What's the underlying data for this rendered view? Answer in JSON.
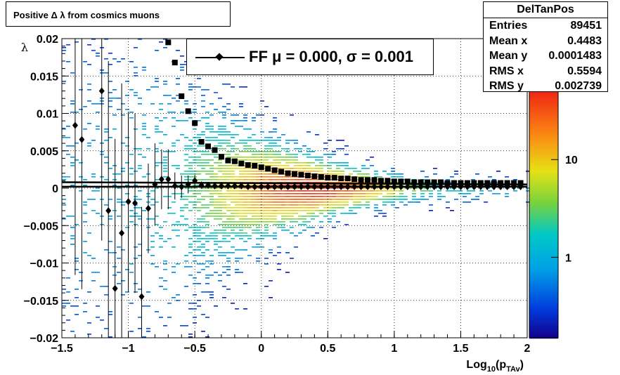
{
  "title": "Positive Δ λ from cosmics muons",
  "stats": {
    "name": "DelTanPos",
    "rows": [
      {
        "label": "Entries",
        "value": "89451"
      },
      {
        "label": "Mean x",
        "value": "0.4483"
      },
      {
        "label": "Mean y",
        "value": "0.0001483"
      },
      {
        "label": "RMS x",
        "value": "0.5594"
      },
      {
        "label": "RMS y",
        "value": "0.002739"
      }
    ]
  },
  "legend": {
    "label": "FF μ =  0.000, σ =   0.001"
  },
  "chart_data": {
    "type": "heatmap",
    "title": "Positive Δ λ from cosmics muons",
    "xlabel": "Log10(pTAv)",
    "ylabel": "λ",
    "xlim": [
      -1.5,
      2
    ],
    "ylim": [
      -0.02,
      0.02
    ],
    "x_ticks": [
      -1.5,
      -1,
      -0.5,
      0,
      0.5,
      1,
      1.5,
      2
    ],
    "x_tick_labels": [
      "−1.5",
      "−1",
      "−0.5",
      "0",
      "0.5",
      "1",
      "1.5",
      "2"
    ],
    "y_ticks": [
      -0.02,
      -0.015,
      -0.01,
      -0.005,
      0,
      0.005,
      0.01,
      0.015,
      0.02
    ],
    "y_tick_labels": [
      "−0.02",
      "−0.015",
      "−0.01",
      "−0.005",
      "0",
      "0.005",
      "0.01",
      "0.015",
      "0.02"
    ],
    "grid": true,
    "colorbar": {
      "scale": "log",
      "tick_values": [
        1,
        10
      ],
      "tick_labels": [
        "1",
        "10"
      ]
    },
    "fit_mean": {
      "name": "FF",
      "x": [
        -1.4,
        -1.35,
        -1.2,
        -1.15,
        -1.1,
        -1.05,
        -1.0,
        -0.95,
        -0.9,
        -0.85,
        -0.8,
        -0.75,
        -0.7,
        -0.65,
        -0.6,
        -0.55,
        -0.5,
        -0.45,
        -0.4,
        -0.35,
        -0.3,
        -0.25,
        -0.2,
        -0.15,
        -0.1,
        -0.05,
        0.0,
        0.05,
        0.1,
        0.15,
        0.2,
        0.25,
        0.3,
        0.35,
        0.4,
        0.45,
        0.5,
        0.55,
        0.6,
        0.65,
        0.7,
        0.75,
        0.8,
        0.85,
        0.9,
        0.95,
        1.0,
        1.05,
        1.1,
        1.15,
        1.2,
        1.25,
        1.3,
        1.35,
        1.4,
        1.45,
        1.5,
        1.55,
        1.6,
        1.65,
        1.7,
        1.75,
        1.8,
        1.85,
        1.9,
        1.95
      ],
      "y": [
        0.0084,
        0.0065,
        0.013,
        -0.003,
        -0.0134,
        -0.006,
        -0.0018,
        -0.002,
        -0.0145,
        -0.0027,
        0.0005,
        0.0012,
        0.0012,
        0.0003,
        0.0002,
        0.0005,
        0.001,
        0.0004,
        0.0004,
        0.0003,
        0.0003,
        0.0003,
        0.0003,
        0.0003,
        0.0002,
        0.0002,
        0.0002,
        0.0002,
        0.0002,
        0.0002,
        0.0002,
        0.0002,
        0.0002,
        0.0002,
        0.0002,
        0.0002,
        0.0002,
        0.0002,
        0.0002,
        0.0002,
        0.0002,
        0.0002,
        0.0002,
        0.0002,
        0.0002,
        0.0002,
        0.0002,
        0.0002,
        0.0002,
        0.0002,
        0.0002,
        0.0002,
        0.0002,
        0.0002,
        0.0002,
        0.0002,
        0.0002,
        0.0002,
        0.0002,
        0.0002,
        0.0002,
        0.0002,
        0.0002,
        0.0002,
        0.0002,
        0.0002
      ],
      "err": [
        0.02,
        0.02,
        0.02,
        0.02,
        0.02,
        0.02,
        0.012,
        0.012,
        0.012,
        0.006,
        0.0055,
        0.004,
        0.004,
        0.0018,
        0.0015,
        0.0012,
        0.0008,
        0.0005,
        0.0004,
        0.0003,
        0.0002,
        0.0002,
        0.0002,
        0.0002,
        0.0002,
        0.0002,
        0.0002,
        0.0002,
        0.0002,
        0.0002,
        0.0002,
        0.0002,
        0.0002,
        0.0002,
        0.0002,
        0.0002,
        0.0002,
        0.0002,
        0.0002,
        0.0002,
        0.0002,
        0.0002,
        0.0002,
        0.0002,
        0.0002,
        0.0002,
        0.0002,
        0.0002,
        0.0002,
        0.0002,
        0.0002,
        0.0002,
        0.0002,
        0.0002,
        0.0002,
        0.0002,
        0.0002,
        0.0002,
        0.0002,
        0.0002,
        0.0002,
        0.0002,
        0.0002,
        0.0002,
        0.0002,
        0.0002
      ]
    },
    "fit_sigma": {
      "x": [
        -0.7,
        -0.65,
        -0.6,
        -0.55,
        -0.5,
        -0.45,
        -0.4,
        -0.35,
        -0.3,
        -0.25,
        -0.2,
        -0.15,
        -0.1,
        -0.05,
        0.0,
        0.05,
        0.1,
        0.15,
        0.2,
        0.25,
        0.3,
        0.35,
        0.4,
        0.45,
        0.5,
        0.55,
        0.6,
        0.65,
        0.7,
        0.75,
        0.8,
        0.85,
        0.9,
        0.95,
        1.0,
        1.05,
        1.1,
        1.15,
        1.2,
        1.25,
        1.3,
        1.35,
        1.4,
        1.45,
        1.5,
        1.55,
        1.6,
        1.65,
        1.7,
        1.75,
        1.8,
        1.85,
        1.9,
        1.95
      ],
      "y": [
        0.0195,
        0.0168,
        0.0123,
        0.0103,
        0.0087,
        0.0062,
        0.0056,
        0.0051,
        0.0042,
        0.0037,
        0.0036,
        0.0033,
        0.0031,
        0.003,
        0.0028,
        0.0026,
        0.0024,
        0.0022,
        0.002,
        0.0019,
        0.0018,
        0.0017,
        0.0016,
        0.0015,
        0.0014,
        0.0014,
        0.0013,
        0.0013,
        0.0012,
        0.0011,
        0.0011,
        0.0011,
        0.001,
        0.001,
        0.0009,
        0.0009,
        0.0009,
        0.0008,
        0.0008,
        0.0008,
        0.0008,
        0.0008,
        0.0007,
        0.0007,
        0.0007,
        0.0007,
        0.0007,
        0.0007,
        0.0007,
        0.0007,
        0.0007,
        0.0007,
        0.0007,
        0.0007
      ]
    }
  }
}
